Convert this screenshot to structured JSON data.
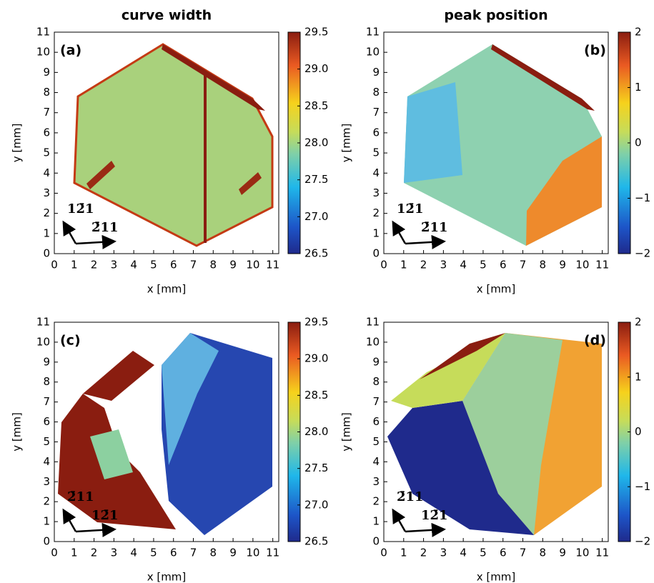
{
  "chart_data": [
    {
      "type": "heatmap",
      "title": "curve width",
      "label": "(a)",
      "xlabel": "x [mm]",
      "ylabel": "y [mm]",
      "xlim": [
        0,
        11.3
      ],
      "ylim": [
        0,
        11
      ],
      "xticks": [
        0,
        1,
        2,
        3,
        4,
        5,
        6,
        7,
        8,
        9,
        10,
        11
      ],
      "yticks": [
        0,
        1,
        2,
        3,
        4,
        5,
        6,
        7,
        8,
        9,
        10,
        11
      ],
      "colorbar": {
        "lim": [
          26.5,
          29.5
        ],
        "ticks": [
          {
            "value": 26.5,
            "label": "26.5"
          },
          {
            "value": 27,
            "label": "27.0"
          },
          {
            "value": 27.5,
            "label": "27.5"
          },
          {
            "value": 28,
            "label": "28.0"
          },
          {
            "value": 28.5,
            "label": "28.5"
          },
          {
            "value": 29,
            "label": "29.0"
          },
          {
            "value": 29.5,
            "label": "29.5"
          }
        ]
      },
      "directions": [
        "12̄1",
        "2̄11"
      ]
    },
    {
      "type": "heatmap",
      "title": "peak position",
      "label": "(b)",
      "xlabel": "x [mm]",
      "ylabel": "y [mm]",
      "xlim": [
        0,
        11.3
      ],
      "ylim": [
        0,
        11
      ],
      "xticks": [
        0,
        1,
        2,
        3,
        4,
        5,
        6,
        7,
        8,
        9,
        10,
        11
      ],
      "yticks": [
        0,
        1,
        2,
        3,
        4,
        5,
        6,
        7,
        8,
        9,
        10,
        11
      ],
      "colorbar": {
        "lim": [
          -2,
          2
        ],
        "ticks": [
          {
            "value": -2,
            "label": "−2"
          },
          {
            "value": -1,
            "label": "−1"
          },
          0,
          1,
          2
        ]
      },
      "directions": [
        "12̄1",
        "2̄11"
      ]
    },
    {
      "type": "heatmap",
      "label": "(c)",
      "xlabel": "x [mm]",
      "ylabel": "y [mm]",
      "xlim": [
        0,
        11.3
      ],
      "ylim": [
        0,
        11
      ],
      "xticks": [
        0,
        1,
        2,
        3,
        4,
        5,
        6,
        7,
        8,
        9,
        10,
        11
      ],
      "yticks": [
        0,
        1,
        2,
        3,
        4,
        5,
        6,
        7,
        8,
        9,
        10,
        11
      ],
      "colorbar": {
        "lim": [
          26.5,
          29.5
        ],
        "ticks": [
          {
            "value": 26.5,
            "label": "26.5"
          },
          {
            "value": 27,
            "label": "27.0"
          },
          {
            "value": 27.5,
            "label": "27.5"
          },
          {
            "value": 28,
            "label": "28.0"
          },
          {
            "value": 28.5,
            "label": "28.5"
          },
          {
            "value": 29,
            "label": "29.0"
          },
          {
            "value": 29.5,
            "label": "29.5"
          }
        ]
      },
      "directions": [
        "2̄11",
        "12̄1"
      ]
    },
    {
      "type": "heatmap",
      "label": "(d)",
      "xlabel": "x [mm]",
      "ylabel": "y [mm]",
      "xlim": [
        0,
        11.3
      ],
      "ylim": [
        0,
        11
      ],
      "xticks": [
        0,
        1,
        2,
        3,
        4,
        5,
        6,
        7,
        8,
        9,
        10,
        11
      ],
      "yticks": [
        0,
        1,
        2,
        3,
        4,
        5,
        6,
        7,
        8,
        9,
        10,
        11
      ],
      "colorbar": {
        "lim": [
          -2,
          2
        ],
        "ticks": [
          {
            "value": -2,
            "label": "−2"
          },
          {
            "value": -1,
            "label": "−1"
          },
          0,
          1,
          2
        ]
      },
      "directions": [
        "2̄11",
        "12̄1"
      ]
    }
  ]
}
